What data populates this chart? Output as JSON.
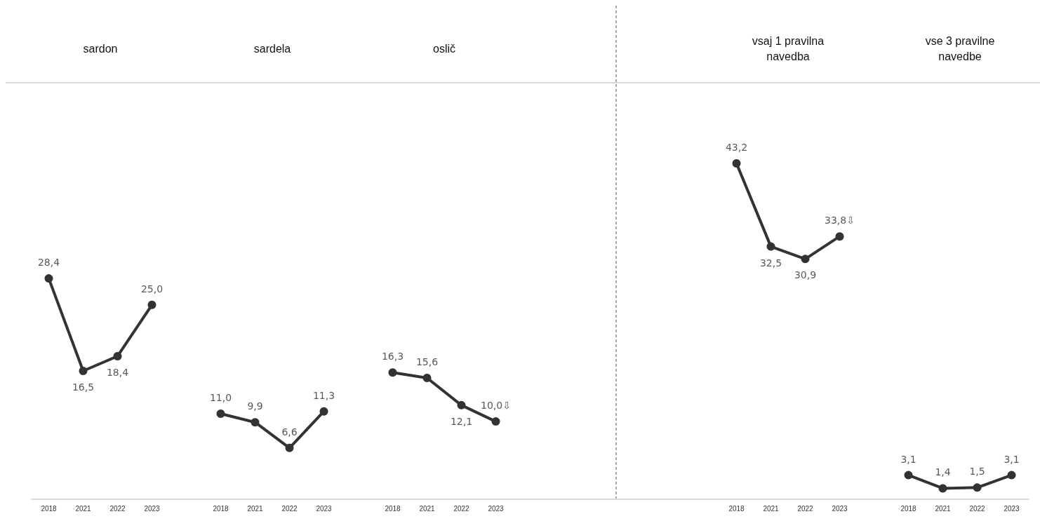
{
  "chart_data": {
    "type": "line",
    "categories": [
      "2018",
      "2021",
      "2022",
      "2023",
      null,
      "2018",
      "2021",
      "2022",
      "2023",
      null,
      "2018",
      "2021",
      "2022",
      "2023",
      null,
      null,
      null,
      null,
      null,
      null,
      "2018",
      "2021",
      "2022",
      "2023",
      null,
      "2018",
      "2021",
      "2022",
      "2023"
    ],
    "series": [
      {
        "color": "#333333",
        "values": [
          28.4,
          16.5,
          18.4,
          25.0,
          null,
          null,
          null,
          null,
          null,
          null,
          null,
          null,
          null,
          null,
          null,
          null,
          null,
          null,
          null,
          null,
          null,
          null,
          null,
          null,
          null,
          null,
          null,
          null,
          null
        ],
        "value_labels": [
          "28,4",
          "16,5",
          "18,4",
          "25,0",
          null,
          null,
          null,
          null,
          null,
          null,
          null,
          null,
          null,
          null,
          null,
          null,
          null,
          null,
          null,
          null,
          null,
          null,
          null,
          null,
          null,
          null,
          null,
          null,
          null
        ]
      },
      {
        "color": "#333333",
        "values": [
          null,
          null,
          null,
          null,
          null,
          11.0,
          9.9,
          6.6,
          11.3,
          null,
          null,
          null,
          null,
          null,
          null,
          null,
          null,
          null,
          null,
          null,
          null,
          null,
          null,
          null,
          null,
          null,
          null,
          null,
          null
        ],
        "value_labels": [
          null,
          null,
          null,
          null,
          null,
          "11,0",
          "9,9",
          "6,6",
          "11,3",
          null,
          null,
          null,
          null,
          null,
          null,
          null,
          null,
          null,
          null,
          null,
          null,
          null,
          null,
          null,
          null,
          null,
          null,
          null,
          null
        ]
      },
      {
        "color": "#333333",
        "values": [
          null,
          null,
          null,
          null,
          null,
          null,
          null,
          null,
          null,
          null,
          16.3,
          15.6,
          12.1,
          10.0,
          null,
          null,
          null,
          null,
          null,
          null,
          null,
          null,
          null,
          null,
          null,
          null,
          null,
          null,
          null
        ],
        "value_labels": [
          null,
          null,
          null,
          null,
          null,
          null,
          null,
          null,
          null,
          null,
          "16,3",
          "15,6",
          "12,1",
          "10,0⇩",
          null,
          null,
          null,
          null,
          null,
          null,
          null,
          null,
          null,
          null,
          null,
          null,
          null,
          null,
          null
        ]
      },
      {
        "color": "#333333",
        "values": [
          null,
          null,
          null,
          null,
          null,
          null,
          null,
          null,
          null,
          null,
          null,
          null,
          null,
          null,
          null,
          null,
          null,
          null,
          null,
          null,
          43.2,
          32.5,
          30.9,
          33.8,
          null,
          null,
          null,
          null,
          null
        ],
        "value_labels": [
          null,
          null,
          null,
          null,
          null,
          null,
          null,
          null,
          null,
          null,
          null,
          null,
          null,
          null,
          null,
          null,
          null,
          null,
          null,
          null,
          "43,2",
          "32,5",
          "30,9",
          "33,8⇩",
          null,
          null,
          null,
          null,
          null
        ]
      },
      {
        "color": "#333333",
        "values": [
          null,
          null,
          null,
          null,
          null,
          null,
          null,
          null,
          null,
          null,
          null,
          null,
          null,
          null,
          null,
          null,
          null,
          null,
          null,
          null,
          null,
          null,
          null,
          null,
          null,
          3.1,
          1.4,
          1.5,
          3.1
        ],
        "value_labels": [
          null,
          null,
          null,
          null,
          null,
          null,
          null,
          null,
          null,
          null,
          null,
          null,
          null,
          null,
          null,
          null,
          null,
          null,
          null,
          null,
          null,
          null,
          null,
          null,
          null,
          "3,1",
          "1,4",
          "1,5",
          "3,1"
        ]
      }
    ],
    "annotations": [
      "sardon",
      "sardela",
      "oslič",
      "vsaj 1 pravilna navedba",
      "vse 3 pravilne navedbe"
    ],
    "marker": "circle",
    "line_style": "solid",
    "grid": false
  }
}
